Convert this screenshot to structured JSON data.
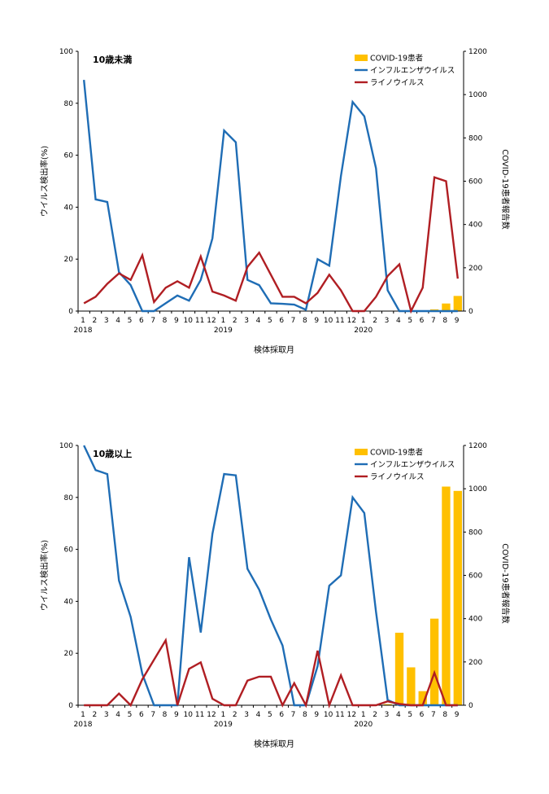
{
  "chart_data": [
    {
      "type": "bar+line",
      "title": "10歳未満",
      "xlabel": "検体採取月",
      "ylabel": "ウイルス検出率(%)",
      "y2label": "COVID-19患者報告数",
      "ylim": [
        0,
        100
      ],
      "y2lim": [
        0,
        1200
      ],
      "yticks": [
        "0",
        "20",
        "40",
        "60",
        "80",
        "100"
      ],
      "y2ticks": [
        "0",
        "200",
        "400",
        "600",
        "800",
        "1000",
        "1200"
      ],
      "categories": [
        "1",
        "2",
        "3",
        "4",
        "5",
        "6",
        "7",
        "8",
        "9",
        "10",
        "11",
        "12",
        "1",
        "2",
        "3",
        "4",
        "5",
        "6",
        "7",
        "8",
        "9",
        "10",
        "11",
        "12",
        "1",
        "2",
        "3",
        "4",
        "5",
        "6",
        "7",
        "8",
        "9"
      ],
      "year_labels": [
        {
          "index": 0,
          "label": "2018"
        },
        {
          "index": 12,
          "label": "2019"
        },
        {
          "index": 24,
          "label": "2020"
        }
      ],
      "legend_position": "top-right",
      "series": [
        {
          "name": "COVID-19患者",
          "kind": "bar",
          "axis": "right",
          "color": "#FFC000",
          "values": [
            null,
            null,
            null,
            null,
            null,
            null,
            null,
            null,
            null,
            null,
            null,
            null,
            null,
            null,
            null,
            null,
            null,
            null,
            null,
            null,
            null,
            null,
            null,
            null,
            null,
            null,
            null,
            null,
            null,
            0,
            8,
            35,
            70
          ]
        },
        {
          "name": "インフルエンザウイルス",
          "kind": "line",
          "axis": "left",
          "color": "#1F6DB5",
          "values": [
            89,
            43,
            42,
            15,
            10,
            0,
            0,
            3,
            6,
            4,
            12,
            28,
            69.5,
            65,
            12,
            10,
            3,
            2.8,
            2.5,
            0.5,
            20,
            17.5,
            52,
            80.5,
            75,
            55,
            8,
            0,
            0,
            0,
            0,
            0,
            0
          ]
        },
        {
          "name": "ライノウイルス",
          "kind": "line",
          "axis": "left",
          "color": "#B01E23",
          "values": [
            3,
            5.5,
            10.5,
            14.5,
            12,
            21.5,
            3.5,
            9,
            11.5,
            9,
            21,
            7.5,
            6,
            4,
            17,
            22.5,
            14,
            5.5,
            5.5,
            3,
            7,
            14,
            8,
            0,
            0,
            5.5,
            13.5,
            18,
            0,
            9,
            51.5,
            50,
            12.5
          ]
        }
      ]
    },
    {
      "type": "bar+line",
      "title": "10歳以上",
      "xlabel": "検体採取月",
      "ylabel": "ウイルス検出率(%)",
      "y2label": "COVID-19患者報告数",
      "ylim": [
        0,
        100
      ],
      "y2lim": [
        0,
        1200
      ],
      "yticks": [
        "0",
        "20",
        "40",
        "60",
        "80",
        "100"
      ],
      "y2ticks": [
        "0",
        "200",
        "400",
        "600",
        "800",
        "1000",
        "1200"
      ],
      "categories": [
        "1",
        "2",
        "3",
        "4",
        "5",
        "6",
        "7",
        "8",
        "9",
        "10",
        "11",
        "12",
        "1",
        "2",
        "3",
        "4",
        "5",
        "6",
        "7",
        "8",
        "9",
        "10",
        "11",
        "12",
        "1",
        "2",
        "3",
        "4",
        "5",
        "6",
        "7",
        "8",
        "9"
      ],
      "year_labels": [
        {
          "index": 0,
          "label": "2018"
        },
        {
          "index": 12,
          "label": "2019"
        },
        {
          "index": 24,
          "label": "2020"
        }
      ],
      "legend_position": "top-right",
      "series": [
        {
          "name": "COVID-19患者",
          "kind": "bar",
          "axis": "right",
          "color": "#FFC000",
          "values": [
            null,
            null,
            null,
            null,
            null,
            null,
            null,
            null,
            null,
            null,
            null,
            null,
            null,
            null,
            null,
            null,
            null,
            null,
            null,
            null,
            null,
            null,
            null,
            null,
            null,
            null,
            5,
            335,
            175,
            65,
            400,
            1010,
            990
          ]
        },
        {
          "name": "インフルエンザウイルス",
          "kind": "line",
          "axis": "left",
          "color": "#1F6DB5",
          "values": [
            100,
            90.5,
            89,
            48,
            34,
            12,
            0,
            0,
            0,
            57,
            28,
            66,
            89,
            88.5,
            52.5,
            44.5,
            33,
            23,
            0,
            0,
            15,
            46,
            50,
            80,
            74,
            36,
            2,
            0,
            0,
            0,
            0,
            0,
            0
          ]
        },
        {
          "name": "ライノウイルス",
          "kind": "line",
          "axis": "left",
          "color": "#B01E23",
          "values": [
            0,
            0,
            0,
            4.5,
            0,
            10,
            17.5,
            25,
            0,
            14,
            16.5,
            2.5,
            0,
            0,
            9.5,
            11,
            11,
            0,
            8.5,
            0,
            21,
            0,
            11.5,
            0,
            0,
            0,
            1.5,
            0.5,
            0,
            0,
            12.5,
            0,
            0
          ]
        }
      ]
    }
  ]
}
